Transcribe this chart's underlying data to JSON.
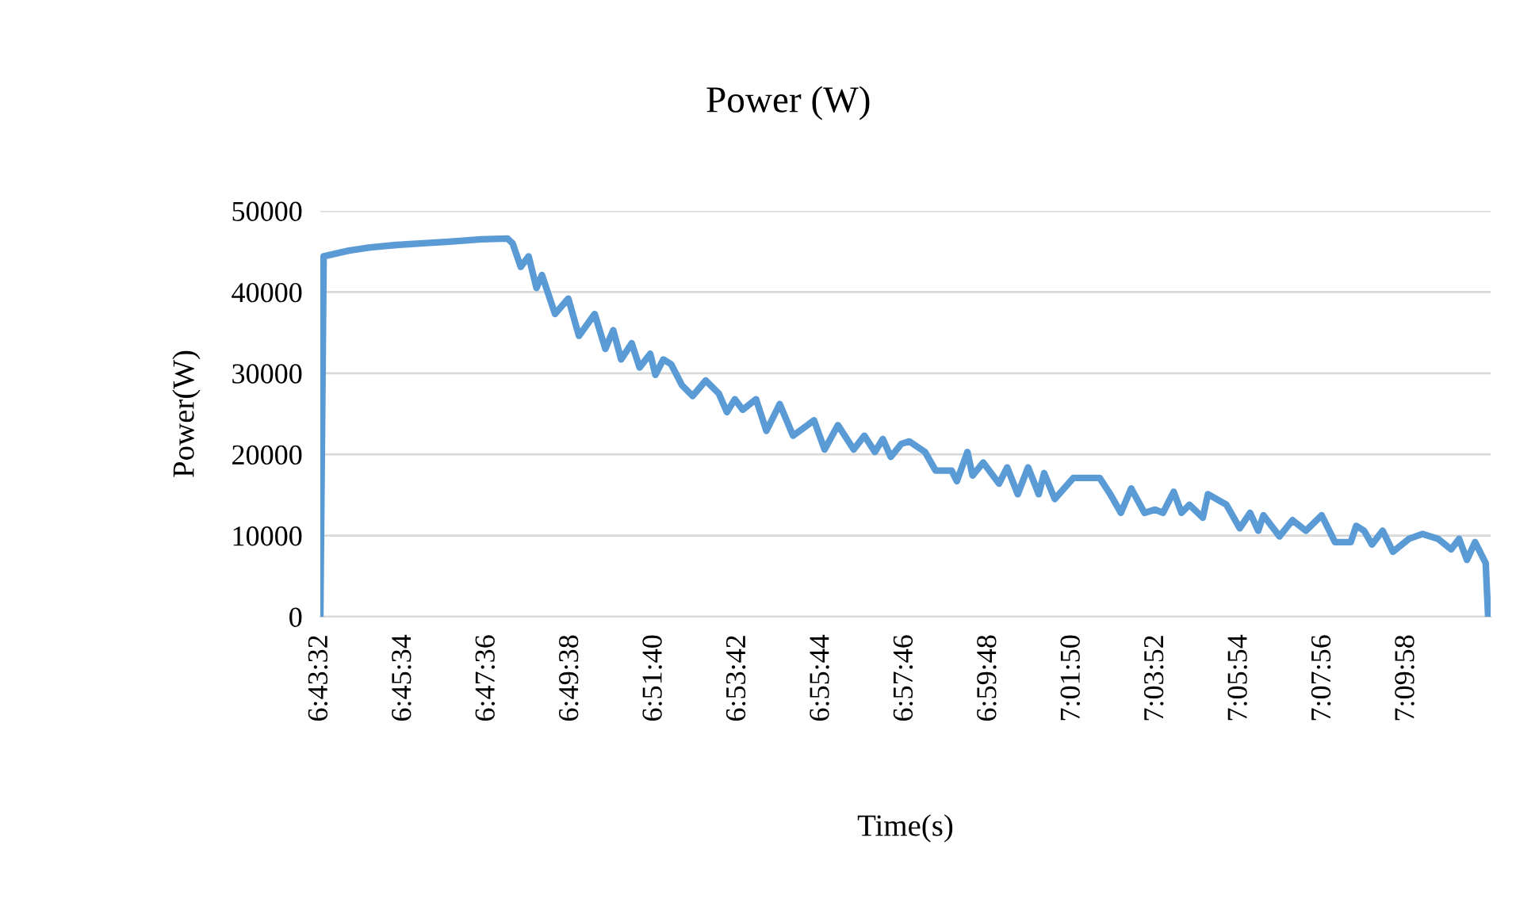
{
  "chart_data": {
    "type": "line",
    "title": "Power (W)",
    "xlabel": "Time(s)",
    "ylabel": "Power(W)",
    "xlim": [
      6.72556,
      7.2
    ],
    "xticks": [
      {
        "value": 6.72556,
        "label": "6:43:32"
      },
      {
        "value": 6.75944,
        "label": "6:45:34"
      },
      {
        "value": 6.79333,
        "label": "6:47:36"
      },
      {
        "value": 6.82722,
        "label": "6:49:38"
      },
      {
        "value": 6.86111,
        "label": "6:51:40"
      },
      {
        "value": 6.895,
        "label": "6:53:42"
      },
      {
        "value": 6.92889,
        "label": "6:55:44"
      },
      {
        "value": 6.96278,
        "label": "6:57:46"
      },
      {
        "value": 6.99667,
        "label": "6:59:48"
      },
      {
        "value": 7.03056,
        "label": "7:01:50"
      },
      {
        "value": 7.06444,
        "label": "7:03:52"
      },
      {
        "value": 7.09833,
        "label": "7:05:54"
      },
      {
        "value": 7.13222,
        "label": "7:07:56"
      },
      {
        "value": 7.16611,
        "label": "7:09:58"
      }
    ],
    "ylim": [
      0,
      50000
    ],
    "yticks": [
      0,
      10000,
      20000,
      30000,
      40000,
      50000
    ],
    "grid": "y",
    "legend": false,
    "marker": "none",
    "line_style": "solid",
    "series": [
      {
        "color": "#5b9bd5",
        "x": [
          6.72556,
          6.7269,
          6.7371,
          6.7457,
          6.7564,
          6.7672,
          6.7778,
          6.7907,
          6.8014,
          6.8035,
          6.8068,
          6.81,
          6.8132,
          6.8154,
          6.8207,
          6.8261,
          6.8304,
          6.8368,
          6.8411,
          6.8443,
          6.8475,
          6.8518,
          6.855,
          6.8593,
          6.8614,
          6.8646,
          6.8678,
          6.8722,
          6.8765,
          6.8818,
          6.8871,
          6.8904,
          6.8936,
          6.8968,
          6.9022,
          6.9064,
          6.9118,
          6.9172,
          6.9257,
          6.93,
          6.9354,
          6.9418,
          6.9461,
          6.9504,
          6.9536,
          6.9568,
          6.9611,
          6.9643,
          6.9707,
          6.975,
          6.9815,
          6.9836,
          6.9879,
          6.99,
          6.9943,
          7.0007,
          7.004,
          7.0083,
          7.0125,
          7.0168,
          7.019,
          7.0233,
          7.0308,
          7.0415,
          7.0458,
          7.0501,
          7.0543,
          7.0597,
          7.064,
          7.0672,
          7.0715,
          7.0747,
          7.0779,
          7.0833,
          7.0854,
          7.0929,
          7.0983,
          7.1025,
          7.1058,
          7.1079,
          7.1144,
          7.1197,
          7.1251,
          7.1315,
          7.1369,
          7.1433,
          7.1455,
          7.1487,
          7.1519,
          7.1562,
          7.1604,
          7.1669,
          7.1723,
          7.1787,
          7.184,
          7.1872,
          7.1904,
          7.1937,
          7.198,
          7.199
        ],
        "values": [
          0,
          44400,
          45100,
          45500,
          45800,
          46000,
          46200,
          46500,
          46600,
          46000,
          43100,
          44400,
          40500,
          42100,
          37300,
          39200,
          34600,
          37300,
          33000,
          35300,
          31700,
          33700,
          30700,
          32400,
          29800,
          31700,
          31100,
          28500,
          27200,
          29100,
          27500,
          25200,
          26800,
          25500,
          26800,
          22900,
          26200,
          22300,
          24200,
          20600,
          23600,
          20600,
          22300,
          20300,
          21900,
          19700,
          21300,
          21600,
          20300,
          18000,
          18000,
          16700,
          20300,
          17400,
          19000,
          16400,
          18400,
          15100,
          18400,
          15100,
          17700,
          14500,
          17100,
          17100,
          15100,
          12800,
          15800,
          12800,
          13200,
          12800,
          15400,
          12800,
          13800,
          12200,
          15100,
          13800,
          10900,
          12800,
          10600,
          12500,
          9900,
          11900,
          10600,
          12500,
          9200,
          9200,
          11200,
          10600,
          8900,
          10600,
          8000,
          9600,
          10200,
          9600,
          8300,
          9600,
          7000,
          9200,
          6600,
          0
        ]
      }
    ]
  }
}
